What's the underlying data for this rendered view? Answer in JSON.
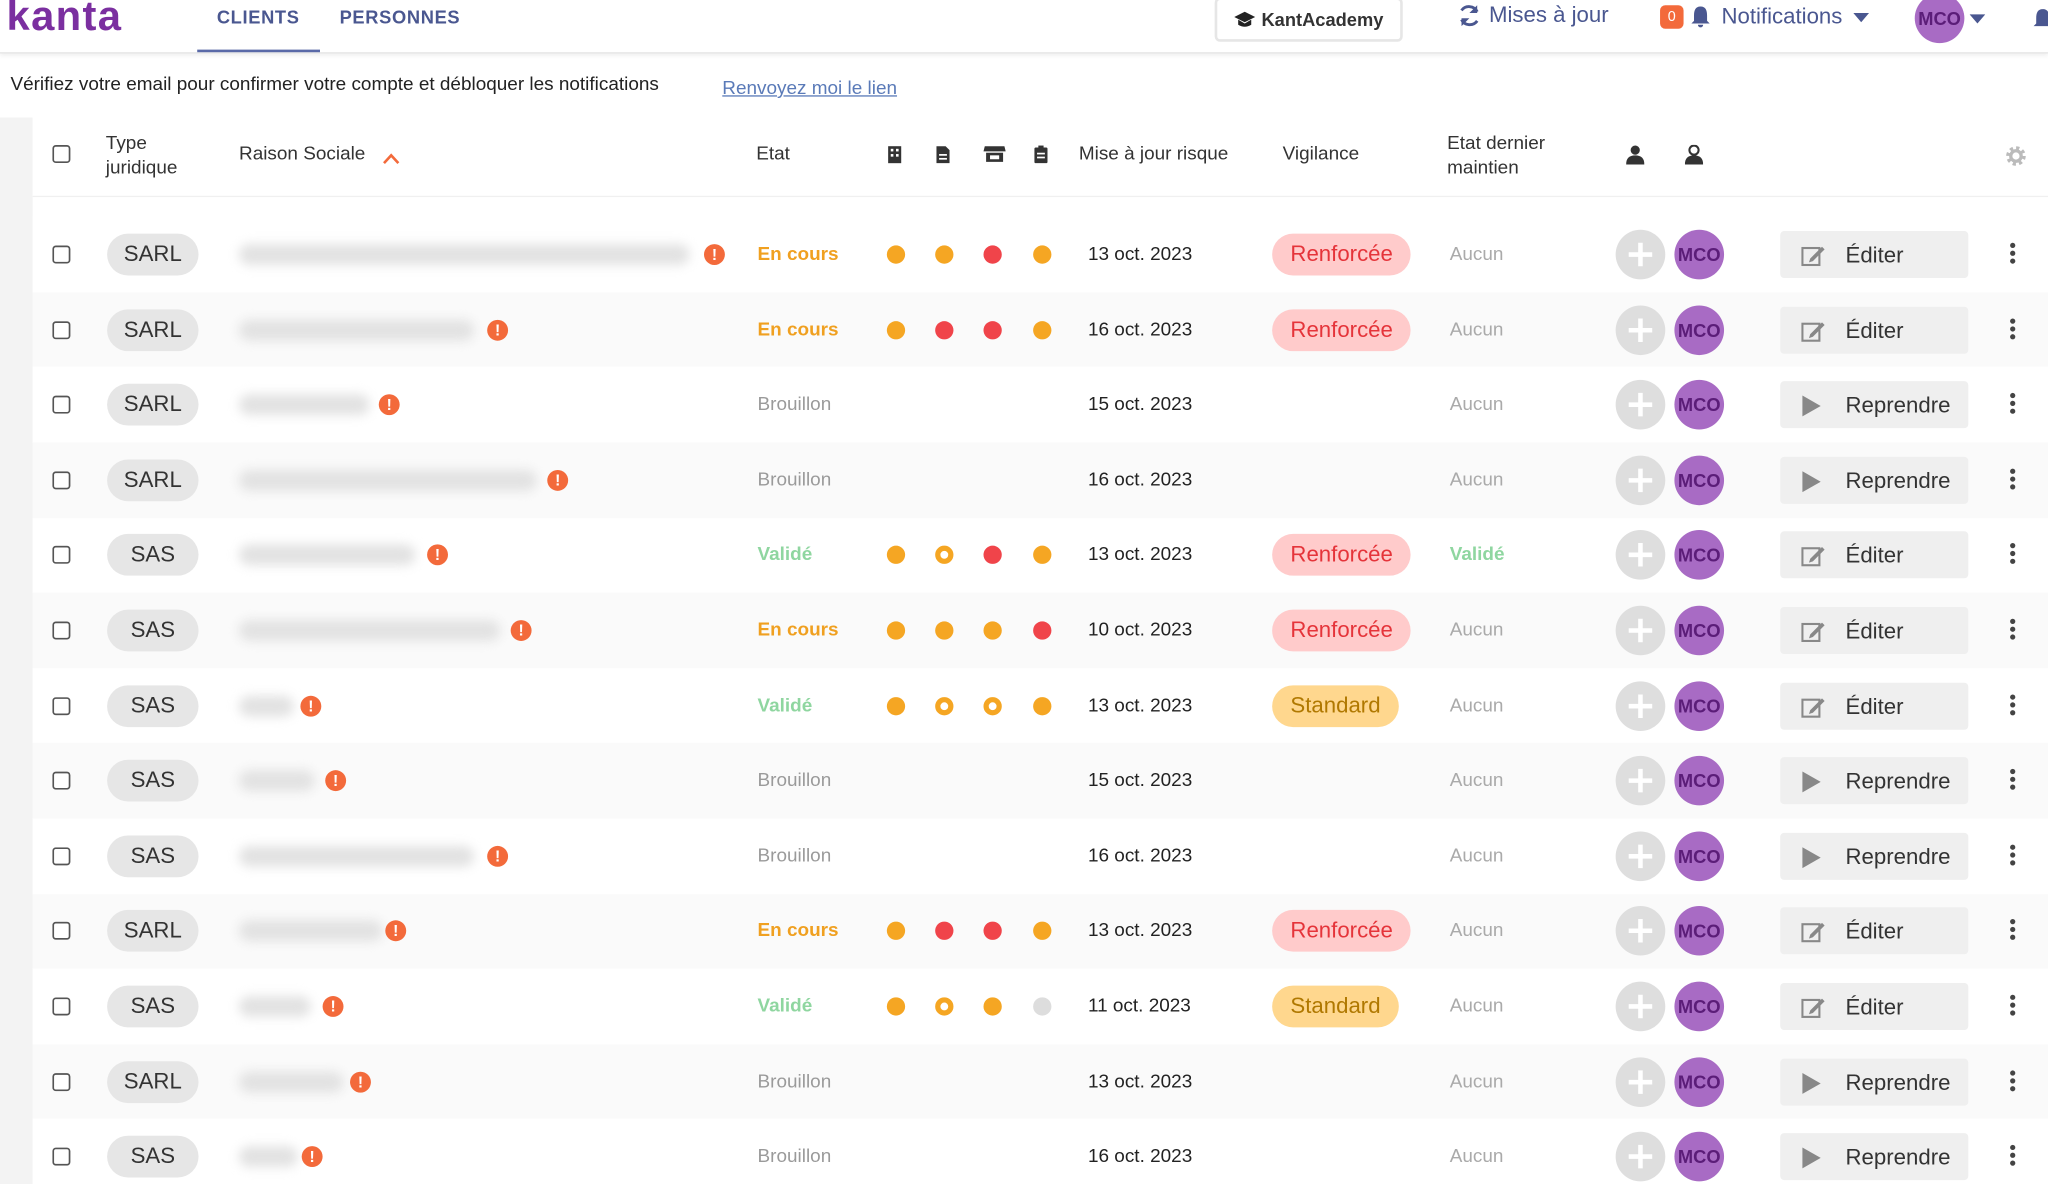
{
  "nav": {
    "logo": "kanta",
    "tabs": [
      "CLIENTS",
      "PERSONNES"
    ],
    "academy": "KantAcademy",
    "updates": "Mises à jour",
    "notif_count": 0,
    "notifications": "Notifications",
    "user": "MCO"
  },
  "banner": {
    "text": "Vérifiez votre email pour confirmer votre compte et débloquer les notifications",
    "link": "Renvoyez moi le lien"
  },
  "table": {
    "headers": {
      "type": "Type juridique",
      "name": "Raison Sociale",
      "state": "Etat",
      "risk": "Mise à jour risque",
      "vigilance": "Vigilance",
      "maintenance": "Etat dernier maintien"
    },
    "rows": [
      {
        "type": "SARL",
        "state": "En cours",
        "state_color": "#f0a020",
        "dots": [
          {
            "color": "#f5a623"
          },
          {
            "color": "#f5a623"
          },
          {
            "color": "#f0444a"
          },
          {
            "color": "#f5a623"
          }
        ],
        "date": "13 oct. 2023",
        "vigilance": {
          "label": "Renforcée",
          "bg": "#ffcbcb",
          "color": "#e5343a"
        },
        "maintenance": "Aucun",
        "maintenance_color": "#aaaaaa",
        "owner": "MCO",
        "action": "Éditer",
        "action_icon": "edit"
      },
      {
        "type": "SARL",
        "state": "En cours",
        "state_color": "#f0a020",
        "dots": [
          {
            "color": "#f5a623"
          },
          {
            "color": "#f0444a"
          },
          {
            "color": "#f0444a"
          },
          {
            "color": "#f5a623"
          }
        ],
        "date": "16 oct. 2023",
        "vigilance": {
          "label": "Renforcée",
          "bg": "#ffcbcb",
          "color": "#e5343a"
        },
        "maintenance": "Aucun",
        "maintenance_color": "#aaaaaa",
        "owner": "MCO",
        "action": "Éditer",
        "action_icon": "edit"
      },
      {
        "type": "SARL",
        "state": "Brouillon",
        "state_color": "#9a9a9a",
        "dots": [],
        "date": "15 oct. 2023",
        "maintenance": "Aucun",
        "maintenance_color": "#aaaaaa",
        "owner": "MCO",
        "action": "Reprendre",
        "action_icon": "play"
      },
      {
        "type": "SARL",
        "state": "Brouillon",
        "state_color": "#9a9a9a",
        "dots": [],
        "date": "16 oct. 2023",
        "maintenance": "Aucun",
        "maintenance_color": "#aaaaaa",
        "owner": "MCO",
        "action": "Reprendre",
        "action_icon": "play"
      },
      {
        "type": "SAS",
        "state": "Validé",
        "state_color": "#8fd6a0",
        "dots": [
          {
            "color": "#f5a623"
          },
          {
            "color": "#f5a623",
            "hollow": true
          },
          {
            "color": "#f0444a"
          },
          {
            "color": "#f5a623"
          }
        ],
        "date": "13 oct. 2023",
        "vigilance": {
          "label": "Renforcée",
          "bg": "#ffcbcb",
          "color": "#e5343a"
        },
        "maintenance": "Validé",
        "maintenance_color": "#8fd6a0",
        "owner": "MCO",
        "action": "Éditer",
        "action_icon": "edit"
      },
      {
        "type": "SAS",
        "state": "En cours",
        "state_color": "#f0a020",
        "dots": [
          {
            "color": "#f5a623"
          },
          {
            "color": "#f5a623"
          },
          {
            "color": "#f5a623"
          },
          {
            "color": "#f0444a"
          }
        ],
        "date": "10 oct. 2023",
        "vigilance": {
          "label": "Renforcée",
          "bg": "#ffcbcb",
          "color": "#e5343a"
        },
        "maintenance": "Aucun",
        "maintenance_color": "#aaaaaa",
        "owner": "MCO",
        "action": "Éditer",
        "action_icon": "edit"
      },
      {
        "type": "SAS",
        "state": "Validé",
        "state_color": "#8fd6a0",
        "dots": [
          {
            "color": "#f5a623"
          },
          {
            "color": "#f5a623",
            "hollow": true
          },
          {
            "color": "#f5a623",
            "hollow": true
          },
          {
            "color": "#f5a623"
          }
        ],
        "date": "13 oct. 2023",
        "vigilance": {
          "label": "Standard",
          "bg": "#ffd78e",
          "color": "#b07800"
        },
        "maintenance": "Aucun",
        "maintenance_color": "#aaaaaa",
        "owner": "MCO",
        "action": "Éditer",
        "action_icon": "edit"
      },
      {
        "type": "SAS",
        "state": "Brouillon",
        "state_color": "#9a9a9a",
        "dots": [],
        "date": "15 oct. 2023",
        "maintenance": "Aucun",
        "maintenance_color": "#aaaaaa",
        "owner": "MCO",
        "action": "Reprendre",
        "action_icon": "play"
      },
      {
        "type": "SAS",
        "state": "Brouillon",
        "state_color": "#9a9a9a",
        "dots": [],
        "date": "16 oct. 2023",
        "maintenance": "Aucun",
        "maintenance_color": "#aaaaaa",
        "owner": "MCO",
        "action": "Reprendre",
        "action_icon": "play"
      },
      {
        "type": "SARL",
        "state": "En cours",
        "state_color": "#f0a020",
        "dots": [
          {
            "color": "#f5a623"
          },
          {
            "color": "#f0444a"
          },
          {
            "color": "#f0444a"
          },
          {
            "color": "#f5a623"
          }
        ],
        "date": "13 oct. 2023",
        "vigilance": {
          "label": "Renforcée",
          "bg": "#ffcbcb",
          "color": "#e5343a"
        },
        "maintenance": "Aucun",
        "maintenance_color": "#aaaaaa",
        "owner": "MCO",
        "action": "Éditer",
        "action_icon": "edit"
      },
      {
        "type": "SAS",
        "state": "Validé",
        "state_color": "#8fd6a0",
        "dots": [
          {
            "color": "#f5a623"
          },
          {
            "color": "#f5a623",
            "hollow": true
          },
          {
            "color": "#f5a623"
          },
          {
            "color": "#dddddd"
          }
        ],
        "date": "11 oct. 2023",
        "vigilance": {
          "label": "Standard",
          "bg": "#ffd78e",
          "color": "#b07800"
        },
        "maintenance": "Aucun",
        "maintenance_color": "#aaaaaa",
        "owner": "MCO",
        "action": "Éditer",
        "action_icon": "edit"
      },
      {
        "type": "SARL",
        "state": "Brouillon",
        "state_color": "#9a9a9a",
        "dots": [],
        "date": "13 oct. 2023",
        "maintenance": "Aucun",
        "maintenance_color": "#aaaaaa",
        "owner": "MCO",
        "action": "Reprendre",
        "action_icon": "play"
      },
      {
        "type": "SAS",
        "state": "Brouillon",
        "state_color": "#9a9a9a",
        "dots": [],
        "date": "16 oct. 2023",
        "maintenance": "Aucun",
        "maintenance_color": "#aaaaaa",
        "owner": "MCO",
        "action": "Reprendre",
        "action_icon": "play"
      }
    ]
  }
}
